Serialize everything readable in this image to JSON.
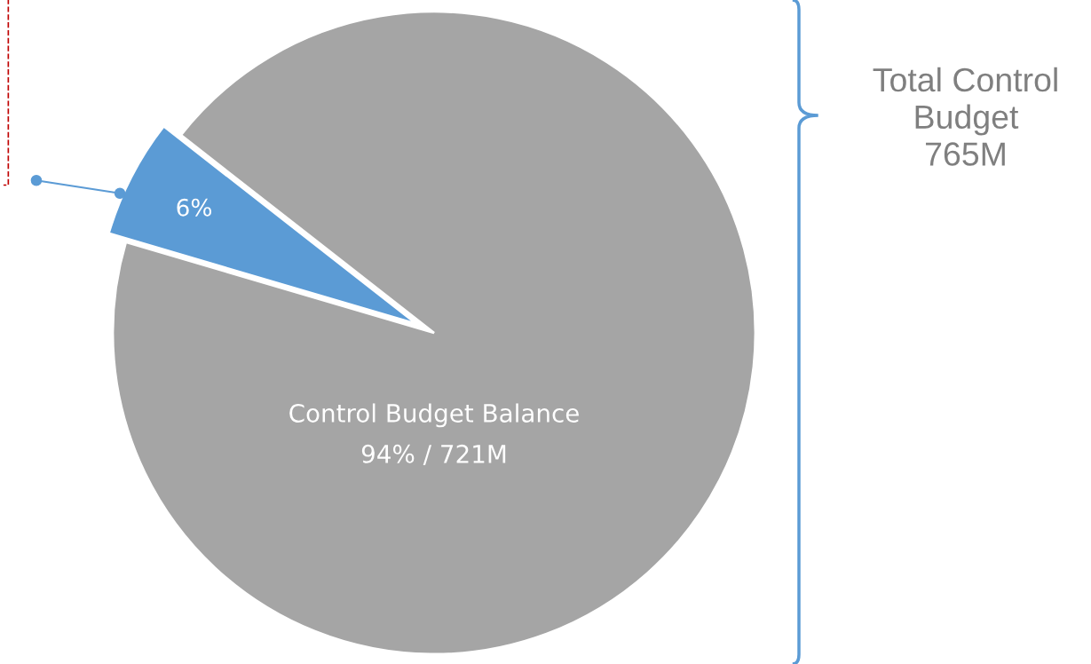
{
  "chart_data": {
    "type": "pie",
    "categories": [
      null,
      "Control Budget Balance"
    ],
    "values": [
      6,
      94
    ],
    "colors": [
      "#5b9bd5",
      "#a5a5a5"
    ],
    "value_labels": [
      "6%",
      "94% / 721M"
    ],
    "annotations": [
      "Total Control\nBudget\n765M"
    ]
  }
}
